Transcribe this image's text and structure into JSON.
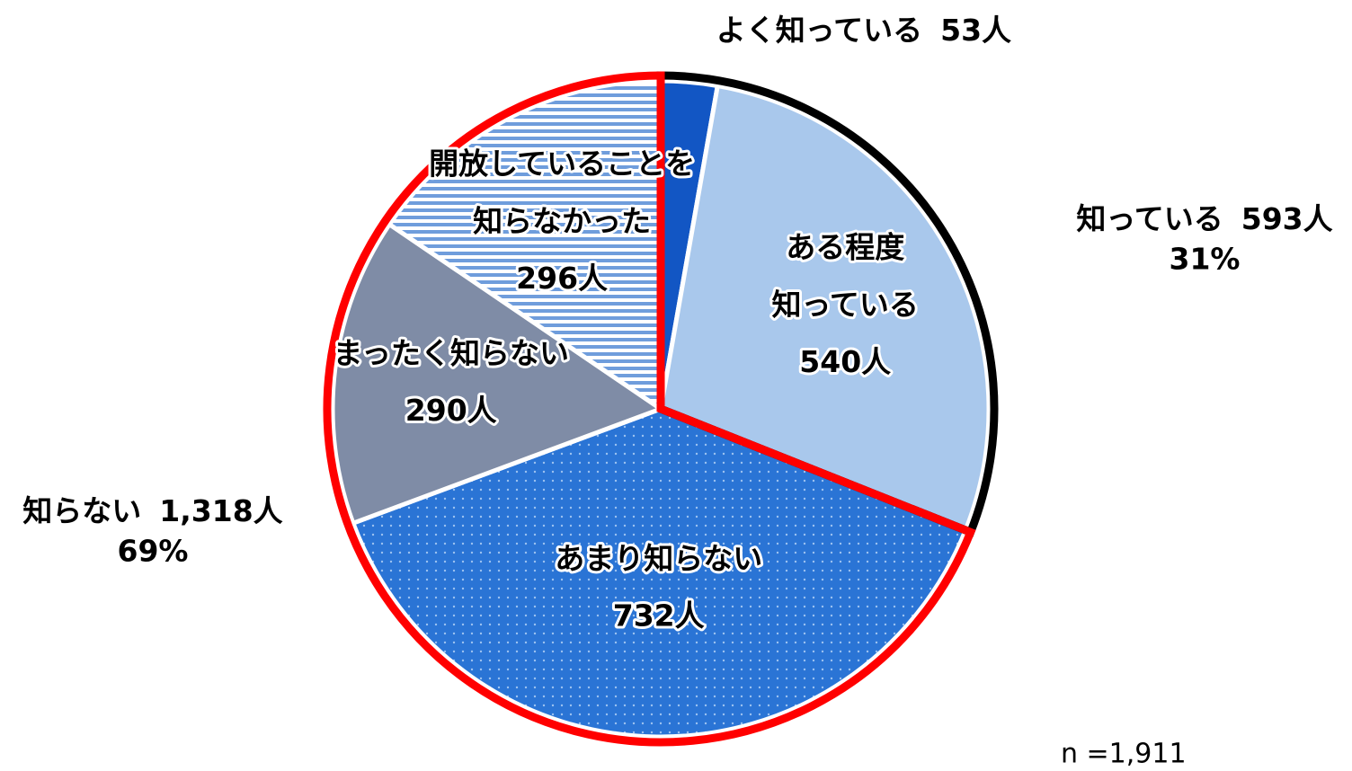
{
  "chart_data": {
    "type": "pie",
    "categories": [
      "よく知っている",
      "ある程度\n知っている",
      "あまり知らない",
      "まったく知らない",
      "開放していることを\n知らなかった"
    ],
    "values": [
      53,
      540,
      732,
      290,
      296
    ],
    "value_labels": [
      "53人",
      "540人",
      "732人",
      "290人",
      "296人"
    ],
    "colors": [
      "#1256c4",
      "#a9c8ec",
      "#2a74d5",
      "#7f8ca6",
      "#ffffff"
    ],
    "patterns": [
      null,
      null,
      "dots",
      null,
      "stripes"
    ],
    "groups": [
      {
        "name": "知っている",
        "value": 593,
        "value_label": "593人",
        "share": "31%",
        "color": "#000000"
      },
      {
        "name": "知らない",
        "value": 1318,
        "value_label": "1,318人",
        "share": "69%",
        "color": "#ff0000"
      }
    ],
    "note": "n =1,911"
  }
}
